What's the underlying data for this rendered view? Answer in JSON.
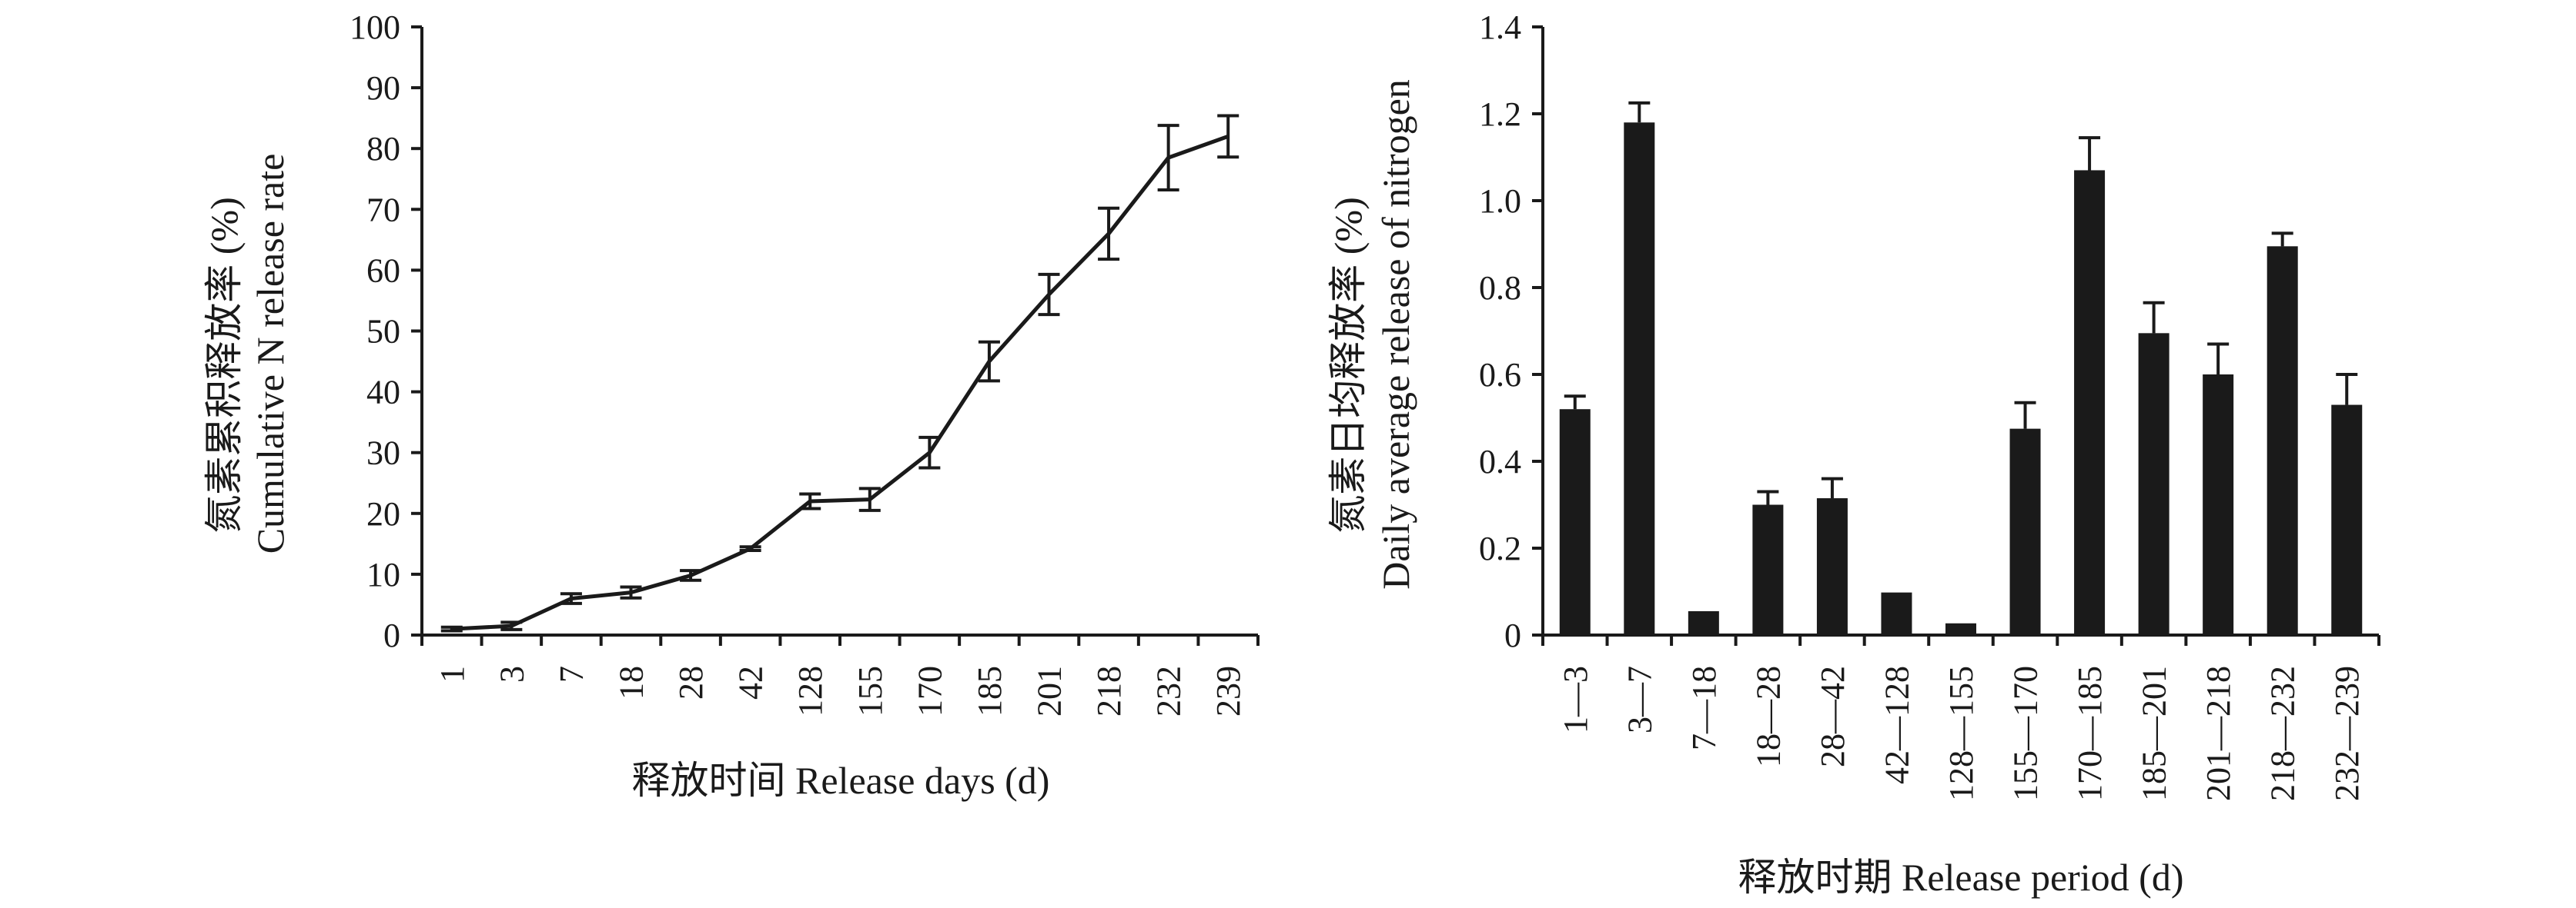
{
  "chart_data": [
    {
      "type": "line",
      "x": [
        "1",
        "3",
        "7",
        "18",
        "28",
        "42",
        "128",
        "155",
        "170",
        "185",
        "201",
        "218",
        "232",
        "239"
      ],
      "values": [
        1,
        1.5,
        6,
        7,
        9.8,
        14.2,
        22,
        22.3,
        30,
        45,
        56,
        66,
        78.5,
        82
      ],
      "errors": [
        0.3,
        0.6,
        0.8,
        0.9,
        0.8,
        0.3,
        1.2,
        1.8,
        2.5,
        3.2,
        3.3,
        4.2,
        5.3,
        3.4
      ],
      "ylim": [
        0,
        100
      ],
      "yticks": [
        "0",
        "10",
        "20",
        "30",
        "40",
        "50",
        "60",
        "70",
        "80",
        "90",
        "100"
      ],
      "ylabel": [
        "氮素累积释放率 (%)",
        "Cumulative N release rate"
      ],
      "xlabel": "释放时间 Release days (d)",
      "grid": false,
      "color": "#1a1a1a"
    },
    {
      "type": "bar",
      "categories": [
        "1—3",
        "3—7",
        "7—18",
        "18—28",
        "28—42",
        "42—128",
        "128—155",
        "155—170",
        "170—185",
        "185—201",
        "201—218",
        "218—232",
        "232—239"
      ],
      "values": [
        0.52,
        1.18,
        0.055,
        0.3,
        0.315,
        0.098,
        0.027,
        0.475,
        1.07,
        0.695,
        0.6,
        0.895,
        0.53
      ],
      "errors": [
        0.03,
        0.045,
        0.0,
        0.03,
        0.045,
        0.0,
        0.0,
        0.06,
        0.075,
        0.07,
        0.07,
        0.03,
        0.07
      ],
      "ylim": [
        0,
        1.4
      ],
      "yticks": [
        "0",
        "0.2",
        "0.4",
        "0.6",
        "0.8",
        "1.0",
        "1.2",
        "1.4"
      ],
      "ylabel": [
        "氮素日均释放率 (%)",
        "Daily average release of nitrogen"
      ],
      "xlabel": "释放时期 Release period (d)",
      "grid": false,
      "color": "#1a1a1a"
    }
  ]
}
